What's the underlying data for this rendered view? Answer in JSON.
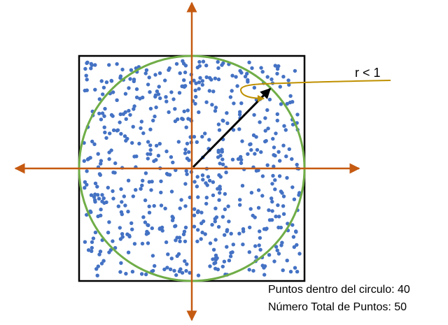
{
  "radius_label": "r < 1",
  "counts": {
    "inside_label": "Puntos dentro del circulo: 40",
    "total_label": "Número Total de Puntos: 50"
  },
  "colors": {
    "axis": "#c55a11",
    "circle": "#70ad47",
    "point": "#4472c4",
    "square": "#000000",
    "radius_arrow": "#000000",
    "callout": "#bf9000"
  }
}
